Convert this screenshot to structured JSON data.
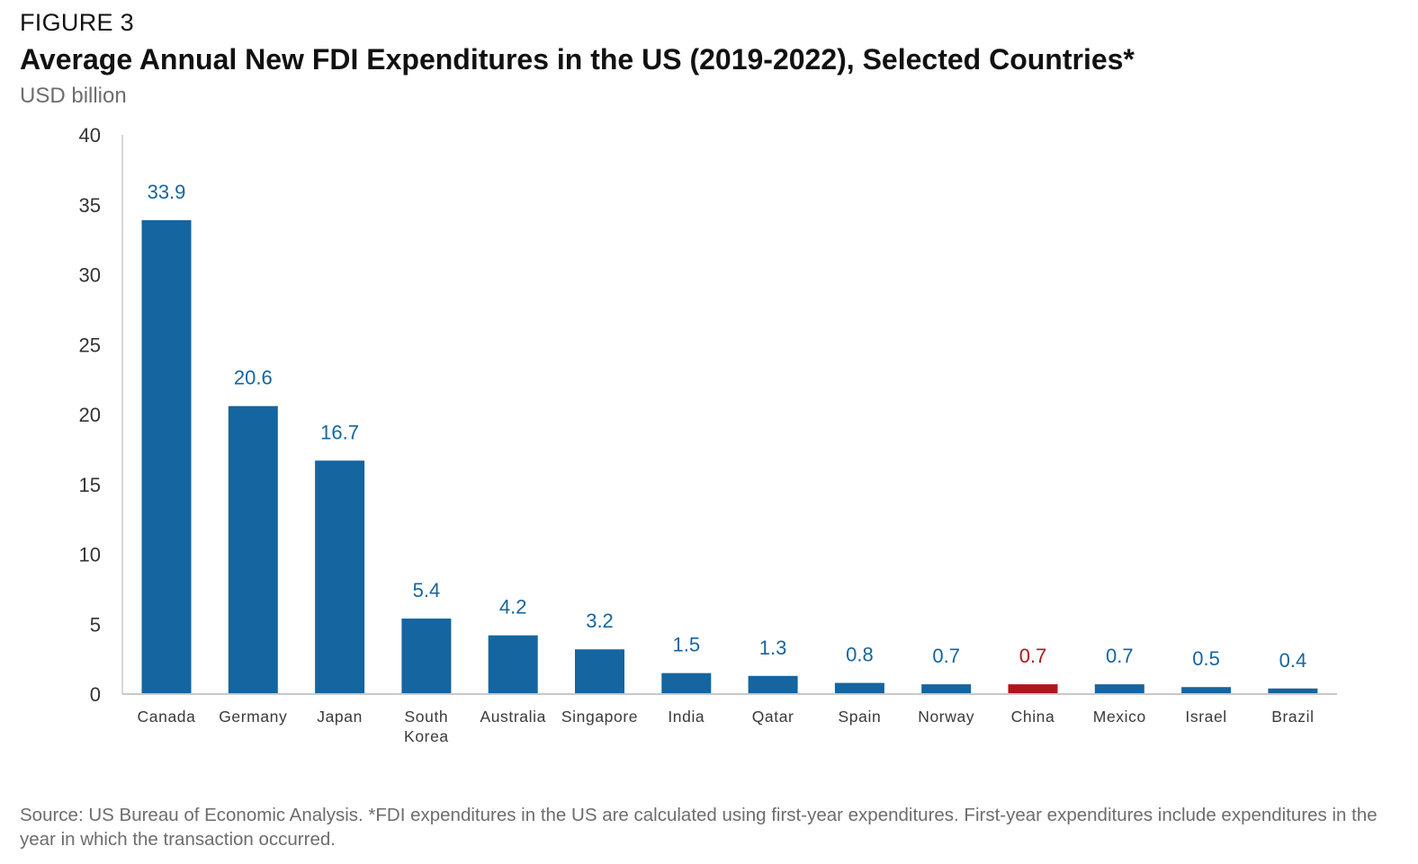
{
  "figure_label": "FIGURE 3",
  "title": "Average Annual New FDI Expenditures in the US (2019-2022), Selected Countries*",
  "subtitle": "USD billion",
  "source": "Source: US Bureau of Economic Analysis. *FDI expenditures in the US are calculated using first-year expenditures. First-year expenditures include expenditures in the year in which the transaction occurred.",
  "colors": {
    "bar": "#1565a0",
    "highlight": "#b0151e",
    "axis": "#c8c8c8",
    "tick_text": "#333333",
    "category_text": "#3a3a3a"
  },
  "chart_data": {
    "type": "bar",
    "title": "Average Annual New FDI Expenditures in the US (2019-2022), Selected Countries*",
    "ylabel": "USD billion",
    "xlabel": "",
    "ylim": [
      0,
      40
    ],
    "yticks": [
      0,
      5,
      10,
      15,
      20,
      25,
      30,
      35,
      40
    ],
    "grid": false,
    "legend": "none",
    "categories": [
      [
        "Canada"
      ],
      [
        "Germany"
      ],
      [
        "Japan"
      ],
      [
        "South",
        "Korea"
      ],
      [
        "Australia"
      ],
      [
        "Singapore"
      ],
      [
        "India"
      ],
      [
        "Qatar"
      ],
      [
        "Spain"
      ],
      [
        "Norway"
      ],
      [
        "China"
      ],
      [
        "Mexico"
      ],
      [
        "Israel"
      ],
      [
        "Brazil"
      ]
    ],
    "values": [
      33.9,
      20.6,
      16.7,
      5.4,
      4.2,
      3.2,
      1.5,
      1.3,
      0.8,
      0.7,
      0.7,
      0.7,
      0.5,
      0.4
    ],
    "data_labels": [
      "33.9",
      "20.6",
      "16.7",
      "5.4",
      "4.2",
      "3.2",
      "1.5",
      "1.3",
      "0.8",
      "0.7",
      "0.7",
      "0.7",
      "0.5",
      "0.4"
    ],
    "highlight_category": "China"
  }
}
